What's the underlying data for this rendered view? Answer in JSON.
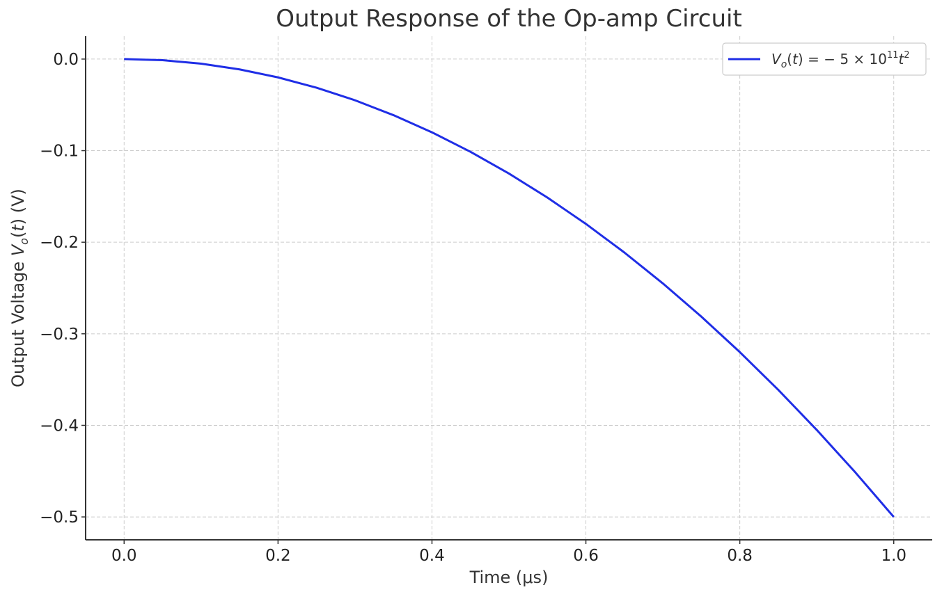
{
  "chart_data": {
    "type": "line",
    "title": "Output Response of the Op-amp Circuit",
    "xlabel": "Time (μs)",
    "ylabel": "Output Voltage V_o(t) (V)",
    "xlim": [
      -0.05,
      1.05
    ],
    "ylim": [
      -0.525,
      0.025
    ],
    "xticks": [
      0.0,
      0.2,
      0.4,
      0.6,
      0.8,
      1.0
    ],
    "xtick_labels": [
      "0.0",
      "0.2",
      "0.4",
      "0.6",
      "0.8",
      "1.0"
    ],
    "yticks": [
      0.0,
      -0.1,
      -0.2,
      -0.3,
      -0.4,
      -0.5
    ],
    "ytick_labels": [
      "0.0",
      "−0.1",
      "−0.2",
      "−0.3",
      "−0.4",
      "−0.5"
    ],
    "grid": true,
    "legend_position": "top-right",
    "series": [
      {
        "name": "V_o(t) = −5 × 10^11 t^2",
        "color": "#1f2ee6",
        "x": [
          0.0,
          0.05,
          0.1,
          0.15,
          0.2,
          0.25,
          0.3,
          0.35,
          0.4,
          0.45,
          0.5,
          0.55,
          0.6,
          0.65,
          0.7,
          0.75,
          0.8,
          0.85,
          0.9,
          0.95,
          1.0
        ],
        "y": [
          0.0,
          -0.00125,
          -0.005,
          -0.01125,
          -0.02,
          -0.03125,
          -0.045,
          -0.06125,
          -0.08,
          -0.10125,
          -0.125,
          -0.15125,
          -0.18,
          -0.21125,
          -0.245,
          -0.28125,
          -0.32,
          -0.36125,
          -0.405,
          -0.45125,
          -0.5
        ]
      }
    ]
  }
}
